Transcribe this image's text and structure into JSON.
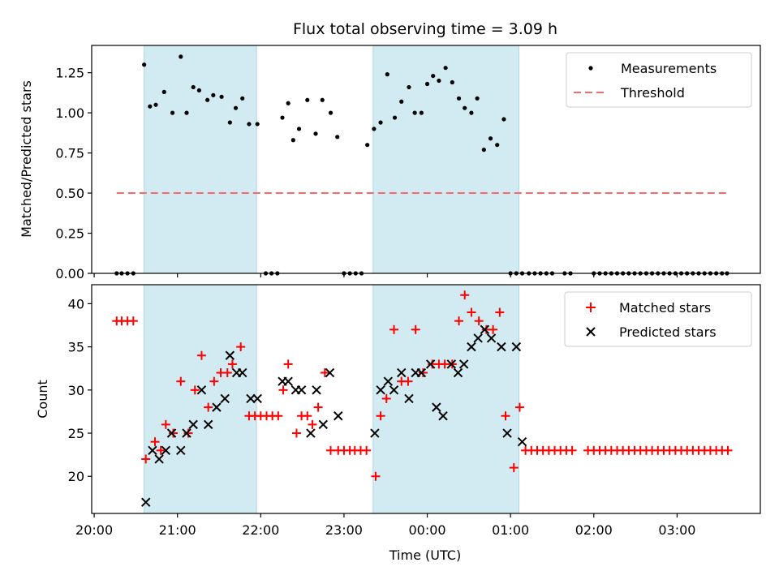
{
  "title": "Flux total observing time = 3.09 h",
  "colors": {
    "band_fill": "#add8e6",
    "measurement": "#000000",
    "threshold": "#ff6666",
    "matched": "#ff0000",
    "predicted": "#000000"
  },
  "chart_data": [
    {
      "type": "scatter",
      "panel": "top",
      "xlabel": "",
      "ylabel": "Matched/Predicted stars",
      "x_unit": "hours since 20:00 UTC",
      "xlim": [
        -0.03,
        8.0
      ],
      "ylim": [
        0,
        1.42
      ],
      "yticks": [
        0.0,
        0.25,
        0.5,
        0.75,
        1.0,
        1.25
      ],
      "ytick_labels": [
        "0.00",
        "0.25",
        "0.50",
        "0.75",
        "1.00",
        "1.25"
      ],
      "xticks": [
        0,
        1,
        2,
        3,
        4,
        5,
        6,
        7
      ],
      "shaded_intervals": [
        [
          0.6,
          1.95
        ],
        [
          3.35,
          5.1
        ]
      ],
      "legend": {
        "position": "upper right",
        "entries": [
          "Measurements",
          "Threshold"
        ]
      },
      "threshold": {
        "name": "Threshold",
        "y": 0.5,
        "x_range": [
          0.27,
          7.6
        ]
      },
      "series": [
        {
          "name": "Measurements",
          "x": [
            0.27,
            0.33,
            0.4,
            0.47,
            0.6,
            0.67,
            0.74,
            0.84,
            0.94,
            1.04,
            1.11,
            1.19,
            1.26,
            1.36,
            1.43,
            1.53,
            1.63,
            1.7,
            1.78,
            1.86,
            1.96,
            2.06,
            2.13,
            2.2,
            2.26,
            2.33,
            2.39,
            2.46,
            2.56,
            2.66,
            2.74,
            2.84,
            2.92,
            3.0,
            3.07,
            3.14,
            3.21,
            3.28,
            3.36,
            3.44,
            3.52,
            3.61,
            3.69,
            3.78,
            3.85,
            3.93,
            4.0,
            4.07,
            4.14,
            4.22,
            4.3,
            4.38,
            4.45,
            4.53,
            4.6,
            4.68,
            4.76,
            4.84,
            4.92,
            5.0,
            5.07,
            5.14,
            5.22,
            5.29,
            5.36,
            5.43,
            5.5,
            5.65,
            5.72,
            6.0,
            6.07,
            6.14,
            6.21,
            6.28,
            6.35,
            6.42,
            6.49,
            6.56,
            6.63,
            6.7,
            6.77,
            6.84,
            6.91,
            6.98,
            7.05,
            7.12,
            7.19,
            7.26,
            7.33,
            7.4,
            7.47,
            7.54,
            7.6
          ],
          "y": [
            0,
            0,
            0,
            0,
            1.3,
            1.04,
            1.05,
            1.13,
            1.0,
            1.35,
            1.0,
            1.16,
            1.14,
            1.08,
            1.11,
            1.1,
            0.94,
            1.03,
            1.09,
            0.93,
            0.93,
            0,
            0,
            0,
            0.97,
            1.06,
            0.83,
            0.9,
            1.08,
            0.87,
            1.08,
            1.0,
            0.85,
            0,
            0,
            0,
            0,
            0.8,
            0.9,
            0.94,
            1.24,
            0.97,
            1.07,
            1.16,
            1.0,
            1.0,
            1.18,
            1.23,
            1.2,
            1.28,
            1.19,
            1.09,
            1.03,
            1.0,
            1.09,
            0.77,
            0.84,
            0.8,
            0.96,
            0,
            0,
            0,
            0,
            0,
            0,
            0,
            0,
            0,
            0,
            0,
            0,
            0,
            0,
            0,
            0,
            0,
            0,
            0,
            0,
            0,
            0,
            0,
            0,
            0,
            0,
            0,
            0,
            0,
            0,
            0,
            0,
            0,
            0
          ]
        }
      ]
    },
    {
      "type": "scatter",
      "panel": "bottom",
      "xlabel": "Time (UTC)",
      "ylabel": "Count",
      "x_unit": "hours since 20:00 UTC",
      "xlim": [
        -0.03,
        8.0
      ],
      "ylim": [
        15.7,
        42.2
      ],
      "yticks": [
        20,
        25,
        30,
        35,
        40
      ],
      "ytick_labels": [
        "20",
        "25",
        "30",
        "35",
        "40"
      ],
      "xticks": [
        0,
        1,
        2,
        3,
        4,
        5,
        6,
        7
      ],
      "xtick_labels": [
        "20:00",
        "21:00",
        "22:00",
        "23:00",
        "00:00",
        "01:00",
        "02:00",
        "03:00"
      ],
      "shaded_intervals": [
        [
          0.6,
          1.95
        ],
        [
          3.35,
          5.1
        ]
      ],
      "legend": {
        "position": "upper right",
        "entries": [
          "Matched stars",
          "Predicted stars"
        ]
      },
      "series": [
        {
          "name": "Matched stars",
          "x": [
            0.27,
            0.33,
            0.4,
            0.47,
            0.62,
            0.73,
            0.8,
            0.86,
            0.95,
            1.04,
            1.13,
            1.21,
            1.29,
            1.37,
            1.44,
            1.52,
            1.6,
            1.66,
            1.76,
            1.86,
            1.93,
            2.0,
            2.07,
            2.14,
            2.21,
            2.27,
            2.33,
            2.43,
            2.49,
            2.56,
            2.62,
            2.69,
            2.77,
            2.84,
            2.93,
            3.0,
            3.07,
            3.13,
            3.2,
            3.27,
            3.38,
            3.44,
            3.51,
            3.6,
            3.69,
            3.77,
            3.86,
            3.95,
            4.06,
            4.14,
            4.21,
            4.3,
            4.38,
            4.45,
            4.53,
            4.62,
            4.71,
            4.79,
            4.87,
            4.94,
            5.04,
            5.11,
            5.18,
            5.25,
            5.32,
            5.39,
            5.46,
            5.53,
            5.6,
            5.67,
            5.74,
            5.93,
            6.0,
            6.07,
            6.14,
            6.21,
            6.28,
            6.35,
            6.42,
            6.49,
            6.56,
            6.63,
            6.7,
            6.77,
            6.84,
            6.91,
            6.98,
            7.05,
            7.12,
            7.19,
            7.26,
            7.33,
            7.4,
            7.47,
            7.54,
            7.61
          ],
          "y": [
            38,
            38,
            38,
            38,
            22,
            24,
            23,
            26,
            25,
            31,
            25,
            30,
            34,
            28,
            31,
            32,
            32,
            33,
            35,
            27,
            27,
            27,
            27,
            27,
            27,
            30,
            33,
            25,
            27,
            27,
            26,
            28,
            32,
            23,
            23,
            23,
            23,
            23,
            23,
            23,
            20,
            27,
            29,
            37,
            31,
            31,
            37,
            32,
            33,
            33,
            33,
            33,
            38,
            41,
            39,
            38,
            37,
            37,
            39,
            27,
            21,
            28,
            23,
            23,
            23,
            23,
            23,
            23,
            23,
            23,
            23,
            23,
            23,
            23,
            23,
            23,
            23,
            23,
            23,
            23,
            23,
            23,
            23,
            23,
            23,
            23,
            23,
            23,
            23,
            23,
            23,
            23,
            23,
            23,
            23,
            23
          ]
        },
        {
          "name": "Predicted stars",
          "x": [
            0.62,
            0.7,
            0.78,
            0.86,
            0.93,
            1.04,
            1.11,
            1.19,
            1.29,
            1.37,
            1.47,
            1.57,
            1.63,
            1.71,
            1.78,
            1.88,
            1.96,
            2.26,
            2.33,
            2.42,
            2.49,
            2.6,
            2.67,
            2.75,
            2.83,
            2.93,
            3.37,
            3.44,
            3.53,
            3.6,
            3.69,
            3.78,
            3.86,
            3.93,
            4.04,
            4.11,
            4.19,
            4.29,
            4.37,
            4.44,
            4.53,
            4.61,
            4.69,
            4.77,
            4.89,
            4.96,
            5.07,
            5.14
          ],
          "y": [
            17,
            23,
            22,
            23,
            25,
            23,
            25,
            26,
            30,
            26,
            28,
            29,
            34,
            32,
            32,
            29,
            29,
            31,
            31,
            30,
            30,
            25,
            30,
            26,
            32,
            27,
            25,
            30,
            31,
            30,
            32,
            29,
            32,
            32,
            33,
            28,
            27,
            33,
            32,
            33,
            35,
            36,
            37,
            36,
            35,
            25,
            35,
            24
          ]
        }
      ]
    }
  ]
}
